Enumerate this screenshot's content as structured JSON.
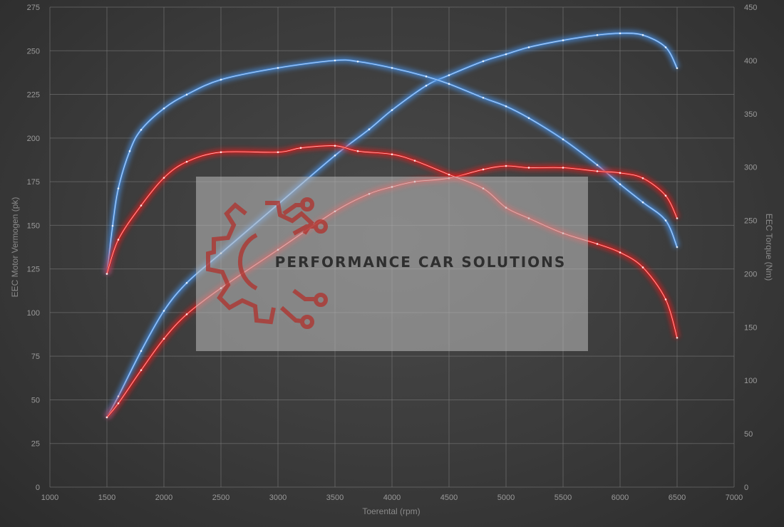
{
  "chart_data": {
    "type": "line",
    "title": "",
    "xlabel": "Toerental (rpm)",
    "ylabel": "EEC Motor Vermogen (pk)",
    "y2label": "EEC Torque (Nm)",
    "xlim": [
      1000,
      7000
    ],
    "ylim": [
      0,
      275
    ],
    "y2lim": [
      0,
      450
    ],
    "x_ticks": [
      1000,
      1500,
      2000,
      2500,
      3000,
      3500,
      4000,
      4500,
      5000,
      5500,
      6000,
      6500,
      7000
    ],
    "y_ticks": [
      0,
      25,
      50,
      75,
      100,
      125,
      150,
      175,
      200,
      225,
      250,
      275
    ],
    "y2_ticks": [
      0,
      50,
      100,
      150,
      200,
      250,
      300,
      350,
      400,
      450
    ],
    "grid": true,
    "legend": "none",
    "series": [
      {
        "color": "#4a90e2",
        "axis": "left",
        "x": [
          1500,
          1600,
          1800,
          2000,
          2200,
          2500,
          3000,
          3500,
          3800,
          4000,
          4300,
          4500,
          4800,
          5000,
          5200,
          5500,
          5800,
          6000,
          6200,
          6400,
          6500
        ],
        "y": [
          40,
          52,
          78,
          101,
          117,
          134,
          162,
          190,
          205,
          216,
          230,
          236,
          244,
          248,
          252,
          256,
          259,
          260,
          259,
          252,
          240
        ]
      },
      {
        "color": "#4a90e2",
        "axis": "right",
        "x": [
          1500,
          1550,
          1600,
          1700,
          1800,
          2000,
          2200,
          2500,
          3000,
          3500,
          3700,
          4000,
          4300,
          4500,
          4800,
          5000,
          5200,
          5500,
          5800,
          6000,
          6200,
          6400,
          6500
        ],
        "y": [
          200,
          245,
          280,
          315,
          335,
          355,
          368,
          382,
          393,
          400,
          399,
          393,
          385,
          378,
          365,
          357,
          346,
          326,
          302,
          284,
          267,
          250,
          225
        ]
      },
      {
        "color": "#e01e1e",
        "axis": "left",
        "x": [
          1500,
          1600,
          1800,
          2000,
          2200,
          2500,
          3000,
          3500,
          3800,
          4000,
          4200,
          4500,
          4800,
          5000,
          5200,
          5500,
          5800,
          6000,
          6200,
          6400,
          6500
        ],
        "y": [
          40,
          48,
          67,
          85,
          99,
          114,
          136,
          158,
          168,
          172,
          175,
          177,
          182,
          184,
          183,
          183,
          181,
          180,
          177,
          167,
          154
        ]
      },
      {
        "color": "#e01e1e",
        "axis": "right",
        "x": [
          1500,
          1600,
          1800,
          2000,
          2200,
          2500,
          3000,
          3200,
          3500,
          3700,
          4000,
          4200,
          4500,
          4800,
          5000,
          5200,
          5500,
          5800,
          6000,
          6200,
          6400,
          6500
        ],
        "y": [
          200,
          232,
          264,
          290,
          305,
          314,
          314,
          318,
          320,
          315,
          312,
          306,
          293,
          280,
          262,
          252,
          238,
          228,
          220,
          206,
          176,
          140
        ]
      }
    ]
  },
  "watermark": {
    "text": "PERFORMANCE CAR SOLUTIONS",
    "logo_color": "#b0312c"
  }
}
